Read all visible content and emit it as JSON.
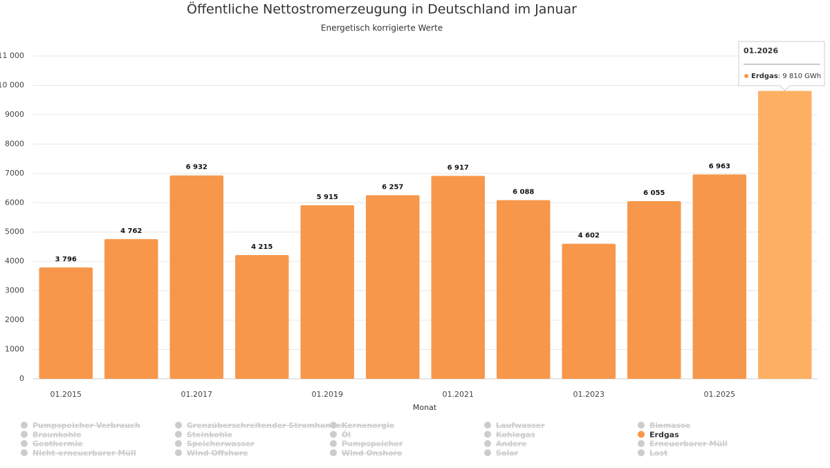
{
  "chart_data": {
    "type": "bar",
    "title": "Öffentliche Nettostromerzeugung in Deutschland im Januar",
    "subtitle": "Energetisch korrigierte Werte",
    "x_label": "Monat",
    "categories": [
      "01.2015",
      null,
      "01.2017",
      null,
      "01.2019",
      null,
      "01.2021",
      null,
      "01.2023",
      null,
      "01.2025",
      null
    ],
    "series": [
      {
        "name": "Pumpspeicher Verbrauch",
        "hidden": true
      },
      {
        "name": "Grenzüberschreitender Stromhandel",
        "hidden": true
      },
      {
        "name": "Kernenergie",
        "hidden": true
      },
      {
        "name": "Laufwasser",
        "hidden": true
      },
      {
        "name": "Biomasse",
        "hidden": true
      },
      {
        "name": "Braunkohle",
        "hidden": true
      },
      {
        "name": "Steinkohle",
        "hidden": true
      },
      {
        "name": "Öl",
        "hidden": true
      },
      {
        "name": "Kohlegas",
        "hidden": true
      },
      {
        "name": "Erdgas",
        "color": "#f7974b",
        "hover_color": "#fdb064",
        "values": [
          3796,
          4762,
          6932,
          4215,
          5915,
          6257,
          6917,
          6088,
          4602,
          6055,
          6963,
          9810
        ],
        "value_labels": [
          "3 796",
          "4 762",
          "6 932",
          "4 215",
          "5 915",
          "6 257",
          "6 917",
          "6 088",
          "4 602",
          "6 055",
          "6 963",
          null
        ]
      },
      {
        "name": "Geothermie",
        "hidden": true
      },
      {
        "name": "Speicherwasser",
        "hidden": true
      },
      {
        "name": "Pumpspeicher",
        "hidden": true
      },
      {
        "name": "Andere",
        "hidden": true
      },
      {
        "name": "Erneuerbarer Müll",
        "hidden": true
      },
      {
        "name": "Nicht-erneuerbarer Müll",
        "hidden": true
      },
      {
        "name": "Wind Offshore",
        "hidden": true
      },
      {
        "name": "Wind Onshore",
        "hidden": true
      },
      {
        "name": "Solar",
        "hidden": true
      },
      {
        "name": "Last",
        "hidden": true
      }
    ],
    "ylim": [
      0,
      11000
    ],
    "yticks": [
      0,
      1000,
      2000,
      3000,
      4000,
      5000,
      6000,
      7000,
      8000,
      9000,
      {
        "value": 10000,
        "label": "10 000"
      },
      {
        "value": 11000,
        "label": "11 000"
      }
    ],
    "grid": true,
    "tooltip": {
      "index": 11,
      "title": "01.2026",
      "series": "Erdgas",
      "text": ": 9 810 GWh"
    }
  }
}
